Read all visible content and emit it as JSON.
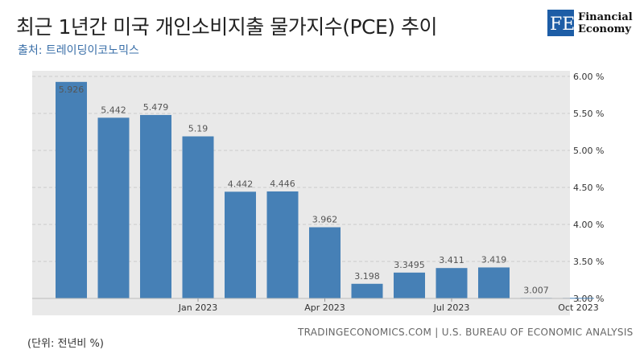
{
  "header": {
    "title": "최근 1년간 미국 개인소비지출 물가지수(PCE) 추이",
    "source": "출처: 트레이딩이코노믹스"
  },
  "logo": {
    "mark": "FE",
    "line1": "Financial",
    "line2": "Economy",
    "color": "#1d5da6"
  },
  "footer": {
    "unit": "(단위: 전년비 %)",
    "credit": "TRADINGECONOMICS.COM | U.S. BUREAU OF ECONOMIC ANALYSIS"
  },
  "colors": {
    "bar": "#4680b6",
    "grid": "#cccccc",
    "panel": "#e9e9e9"
  },
  "chart_data": {
    "type": "bar",
    "categories": [
      "2022-10",
      "2022-11",
      "2022-12",
      "2023-01",
      "2023-02",
      "2023-03",
      "2023-04",
      "2023-05",
      "2023-06",
      "2023-07",
      "2023-08",
      "2023-09",
      "2023-10"
    ],
    "values": [
      5.926,
      5.442,
      5.479,
      5.19,
      4.442,
      4.446,
      3.962,
      3.198,
      3.3495,
      3.411,
      3.419,
      3.007,
      3.007
    ],
    "value_labels": [
      "5.926",
      "5.442",
      "5.479",
      "5.19",
      "4.442",
      "4.446",
      "3.962",
      "3.198",
      "3.3495",
      "3.411",
      "3.419",
      "3.007",
      ""
    ],
    "ylim": [
      3.0,
      6.0
    ],
    "yticks": [
      "6.00 %",
      "5.50 %",
      "5.00 %",
      "4.50 %",
      "4.00 %",
      "3.50 %",
      "3.00 %"
    ],
    "ytick_values": [
      6.0,
      5.5,
      5.0,
      4.5,
      4.0,
      3.5,
      3.0
    ],
    "xticks": [
      "Jan 2023",
      "Apr 2023",
      "Jul 2023",
      "Oct 2023"
    ],
    "xtick_categories": [
      "2023-01",
      "2023-04",
      "2023-07",
      "2023-10"
    ],
    "grid": true
  }
}
